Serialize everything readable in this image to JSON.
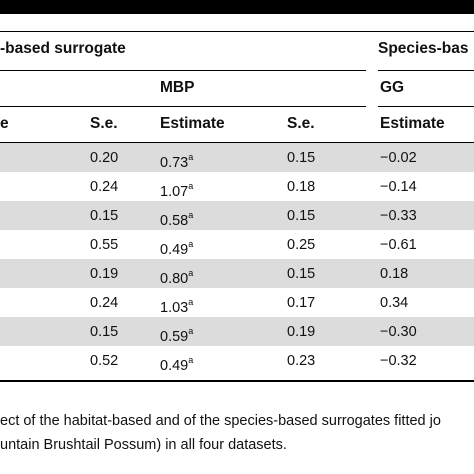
{
  "header": {
    "habitat_surrogate": "-based surrogate",
    "species_surrogate": "Species-bas",
    "mbp": "MBP",
    "gg": "GG",
    "col_estimate_partial": "e",
    "col_se_1": "S.e.",
    "col_estimate_1": "Estimate",
    "col_se_2": "S.e.",
    "col_estimate_2": "Estimate"
  },
  "rows": [
    {
      "se1": "0.20",
      "est": "0.73",
      "sup": "a",
      "se2": "0.15",
      "gg": "−0.02"
    },
    {
      "se1": "0.24",
      "est": "1.07",
      "sup": "a",
      "se2": "0.18",
      "gg": "−0.14"
    },
    {
      "se1": "0.15",
      "est": "0.58",
      "sup": "a",
      "se2": "0.15",
      "gg": "−0.33"
    },
    {
      "se1": "0.55",
      "est": "0.49",
      "sup": "a",
      "se2": "0.25",
      "gg": "−0.61"
    },
    {
      "se1": "0.19",
      "est": "0.80",
      "sup": "a",
      "se2": "0.15",
      "gg": "0.18"
    },
    {
      "se1": "0.24",
      "est": "1.03",
      "sup": "a",
      "se2": "0.17",
      "gg": "0.34"
    },
    {
      "se1": "0.15",
      "est": "0.59",
      "sup": "a",
      "se2": "0.19",
      "gg": "−0.30"
    },
    {
      "se1": "0.52",
      "est": "0.49",
      "sup": "a",
      "se2": "0.23",
      "gg": "−0.32"
    }
  ],
  "caption": {
    "line1": "ect of the habitat-based and of the species-based surrogates fitted jo",
    "line2": "untain Brushtail Possum) in all four datasets."
  }
}
